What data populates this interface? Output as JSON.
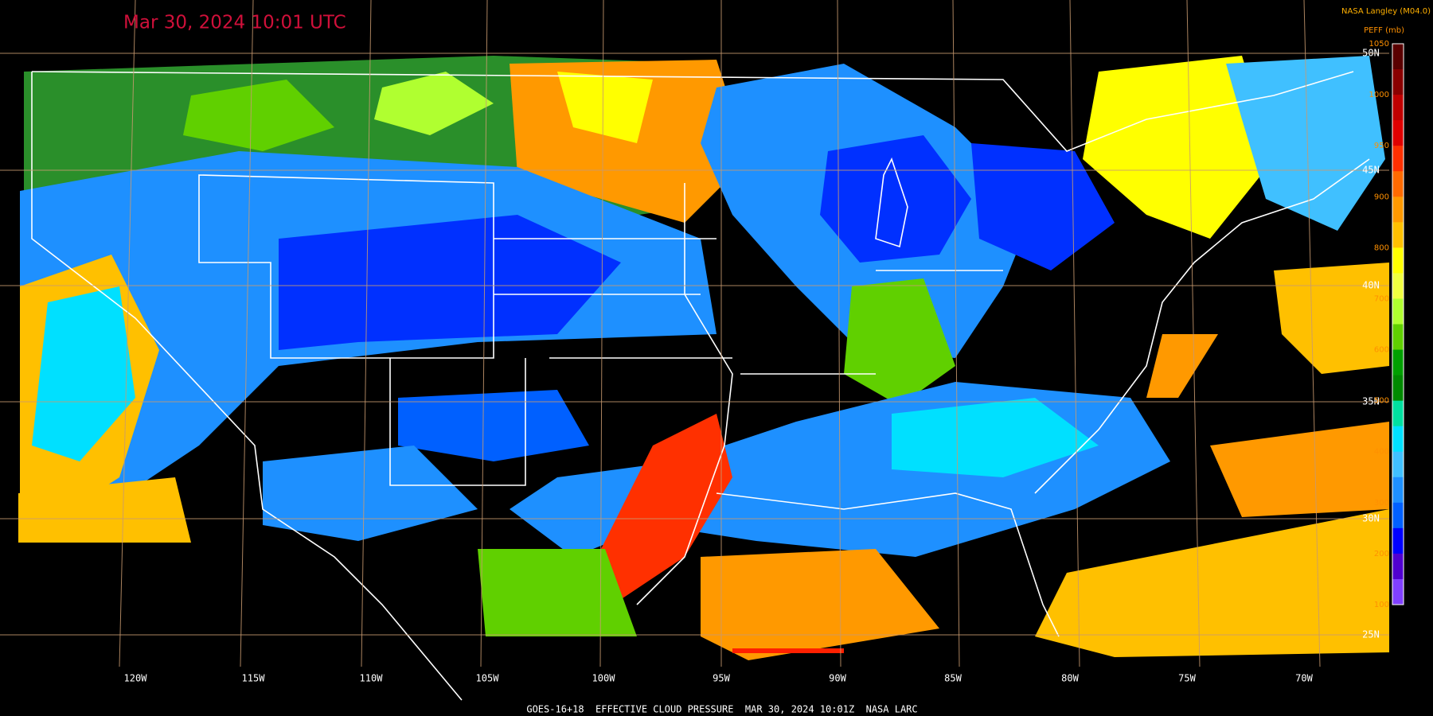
{
  "header": {
    "title": "Mar 30, 2024 10:01 UTC",
    "credit": "NASA Langley (M04.0)"
  },
  "colorbar": {
    "title": "PEFF (mb)",
    "ticks": [
      "1050",
      "1000",
      "950",
      "900",
      "800",
      "700",
      "600",
      "500",
      "400",
      "300",
      "200",
      "100"
    ],
    "colors": [
      "#5a0000",
      "#8a0000",
      "#c00000",
      "#e00000",
      "#ff3000",
      "#ff6a00",
      "#ff9900",
      "#ffc000",
      "#ffff00",
      "#f0ff40",
      "#b0ff30",
      "#60d000",
      "#00a000",
      "#008a00",
      "#00e0a0",
      "#00e0ff",
      "#40c0ff",
      "#1e90ff",
      "#0060ff",
      "#0000ff",
      "#5000d0",
      "#8040ff"
    ]
  },
  "longitudes": [
    "120W",
    "115W",
    "110W",
    "105W",
    "100W",
    "95W",
    "90W",
    "85W",
    "80W",
    "75W",
    "70W"
  ],
  "latitudes": [
    "50N",
    "45N",
    "40N",
    "35N",
    "30N",
    "25N"
  ],
  "footer": "GOES-16+18  EFFECTIVE CLOUD PRESSURE  MAR 30, 2024 10:01Z  NASA LARC"
}
